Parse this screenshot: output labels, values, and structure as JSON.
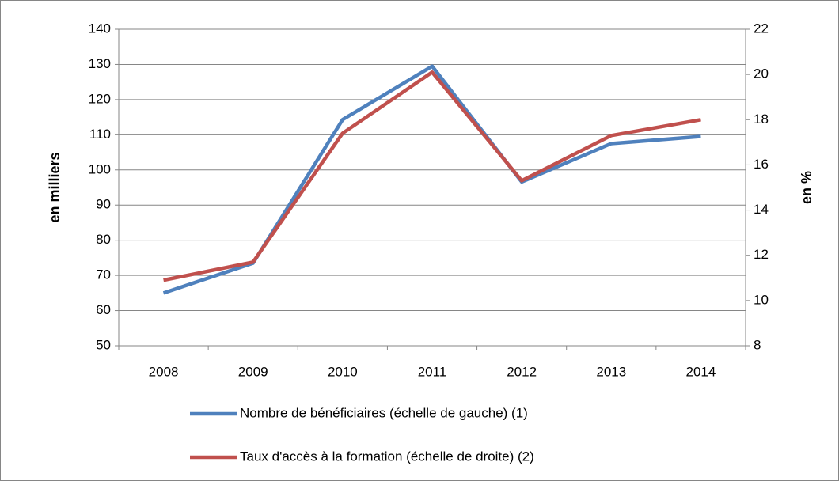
{
  "chart_data": {
    "type": "line",
    "ylabel": "en milliers",
    "y2label": "en %",
    "categories": [
      "2008",
      "2009",
      "2010",
      "2011",
      "2012",
      "2013",
      "2014"
    ],
    "series": [
      {
        "name": "Nombre de bénéficiaires (échelle de gauche) (1)",
        "color": "#4f81bd",
        "values": [
          65,
          73.5,
          114.3,
          129.5,
          96.6,
          107.5,
          109.5
        ]
      },
      {
        "name": "Taux d'accès à la formation (échelle de droite) (2)",
        "color": "#c0504d",
        "axis": "y2",
        "values": [
          10.9,
          11.7,
          17.4,
          20.1,
          15.3,
          17.3,
          18.0
        ]
      }
    ],
    "ylim": [
      50,
      140
    ],
    "yticks": [
      50,
      60,
      70,
      80,
      90,
      100,
      110,
      120,
      130,
      140
    ],
    "y2lim": [
      8,
      22
    ],
    "y2ticks": [
      8,
      10,
      12,
      14,
      16,
      18,
      20,
      22
    ],
    "grid": true,
    "legend": "bottom"
  }
}
